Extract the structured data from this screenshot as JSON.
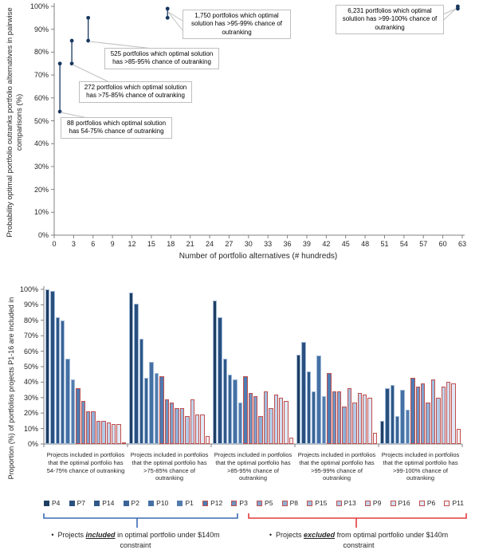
{
  "colors": {
    "axis": "#808080",
    "point_navy": "#17375E",
    "annotation_border": "#BFBFBF",
    "leader": "#BFBFBF",
    "included_brace": "#3B6CB4",
    "excluded_brace": "#E23B3B"
  },
  "chart_data": [
    {
      "type": "scatter",
      "title": "",
      "xlabel": "Number of portfolio alternatives (# hundreds)",
      "ylabel": "Probability optimal portfolio outranks portfolio alternatives in pairwise comparisons (%)",
      "xlim": [
        0,
        63
      ],
      "ylim": [
        0,
        100
      ],
      "grid": false,
      "point_color": "#17375E",
      "x_tick_labels": [
        "0",
        "3",
        "6",
        "9",
        "12",
        "15",
        "18",
        "21",
        "24",
        "27",
        "30",
        "33",
        "36",
        "39",
        "42",
        "45",
        "48",
        "51",
        "54",
        "57",
        "60",
        "63"
      ],
      "y_tick_labels": [
        "0%",
        "10%",
        "20%",
        "30%",
        "40%",
        "50%",
        "60%",
        "70%",
        "80%",
        "90%",
        "100%"
      ],
      "segments": [
        {
          "x_hundreds": 0.88,
          "portfolios": 88,
          "y_low_pct": 54,
          "y_high_pct": 75,
          "annotation": "88 portfolios which optimal solution has 54-75% chance of outranking"
        },
        {
          "x_hundreds": 2.72,
          "portfolios": 272,
          "y_low_pct": 75,
          "y_high_pct": 85,
          "annotation": "272 portfolios which optimal solution has >75-85% chance of outranking"
        },
        {
          "x_hundreds": 5.25,
          "portfolios": 525,
          "y_low_pct": 85,
          "y_high_pct": 95,
          "annotation": "525 portfolios which optimal solution has >85-95% chance of outranking"
        },
        {
          "x_hundreds": 17.5,
          "portfolios": 1750,
          "y_low_pct": 95,
          "y_high_pct": 99,
          "annotation": "1,750 portfolios which optimal solution has >95-99% chance of outranking"
        },
        {
          "x_hundreds": 62.31,
          "portfolios": 6231,
          "y_low_pct": 99,
          "y_high_pct": 100,
          "annotation": "6,231 portfolios which optimal solution has >99-100% chance of outranking"
        }
      ]
    },
    {
      "type": "bar",
      "title": "",
      "xlabel": "",
      "ylabel": "Proportion (%) of portfolios projects P1-16 are included in",
      "ylim": [
        0,
        100
      ],
      "grid": false,
      "legend_position": "bottom",
      "y_tick_labels": [
        "0%",
        "10%",
        "20%",
        "30%",
        "40%",
        "50%",
        "60%",
        "70%",
        "80%",
        "90%",
        "100%"
      ],
      "categories": [
        "Projects included in portfolios that the optimal portfolio has 54-75% chance of outranking",
        "Projects included in portfolios that the optimal portfolio has >75-85% chance of outranking",
        "Projects included in portfolios that the optimal portfolio has >85-95% chance of outranking",
        "Projects included in portfolios that the optimal portfolio has >95-99% chance of outranking",
        "Projects included in portfolios that the optimal portfolio has >99-100% chance of outranking"
      ],
      "included_border_color": "#9FB9D8",
      "excluded_border_color": "#C0504D",
      "series": [
        {
          "name": "P4",
          "excluded": false,
          "fill": "#1F3E63",
          "values": [
            100,
            98,
            93,
            58,
            15
          ]
        },
        {
          "name": "P7",
          "excluded": false,
          "fill": "#29507F",
          "values": [
            99,
            91,
            82,
            66,
            36
          ]
        },
        {
          "name": "P14",
          "excluded": false,
          "fill": "#2F5887",
          "values": [
            82,
            68,
            55,
            47,
            38
          ]
        },
        {
          "name": "P2",
          "excluded": false,
          "fill": "#3A6496",
          "values": [
            80,
            43,
            45,
            34,
            18
          ]
        },
        {
          "name": "P10",
          "excluded": false,
          "fill": "#4470A4",
          "values": [
            55,
            53,
            42,
            57,
            35
          ]
        },
        {
          "name": "P1",
          "excluded": false,
          "fill": "#527CAE",
          "values": [
            42,
            46,
            27,
            31,
            22
          ]
        },
        {
          "name": "P12",
          "excluded": true,
          "fill": "#4E7BB2",
          "values": [
            36,
            44,
            44,
            46,
            43
          ]
        },
        {
          "name": "P3",
          "excluded": true,
          "fill": "#6B92C0",
          "values": [
            28,
            29,
            33,
            34,
            37
          ]
        },
        {
          "name": "P5",
          "excluded": true,
          "fill": "#7FA0CB",
          "values": [
            21,
            27,
            31,
            34,
            39
          ]
        },
        {
          "name": "P8",
          "excluded": true,
          "fill": "#90AED5",
          "values": [
            21,
            23,
            18,
            24,
            27
          ]
        },
        {
          "name": "P15",
          "excluded": true,
          "fill": "#A2BDDE",
          "values": [
            15,
            23,
            34,
            36,
            42
          ]
        },
        {
          "name": "P13",
          "excluded": true,
          "fill": "#B3C9E5",
          "values": [
            15,
            18,
            23,
            27,
            30
          ]
        },
        {
          "name": "P9",
          "excluded": true,
          "fill": "#C2D3EB",
          "values": [
            14,
            29,
            32,
            33,
            37
          ]
        },
        {
          "name": "P16",
          "excluded": true,
          "fill": "#D2DEF0",
          "values": [
            13,
            19,
            30,
            32,
            40
          ]
        },
        {
          "name": "P6",
          "excluded": true,
          "fill": "#E2E8F5",
          "values": [
            13,
            19,
            28,
            30,
            39
          ]
        },
        {
          "name": "P11",
          "excluded": true,
          "fill": "#F7F0F3",
          "values": [
            1,
            5,
            4,
            7,
            10
          ]
        }
      ]
    }
  ],
  "footnotes": {
    "included": {
      "bullet": "•",
      "prefix": "Projects ",
      "emph": "included",
      "suffix": " in optimal portfolio under $140m constraint"
    },
    "excluded": {
      "bullet": "•",
      "prefix": "Projects ",
      "emph": "excluded",
      "suffix": " from optimal portfolio under $140m constraint"
    }
  }
}
